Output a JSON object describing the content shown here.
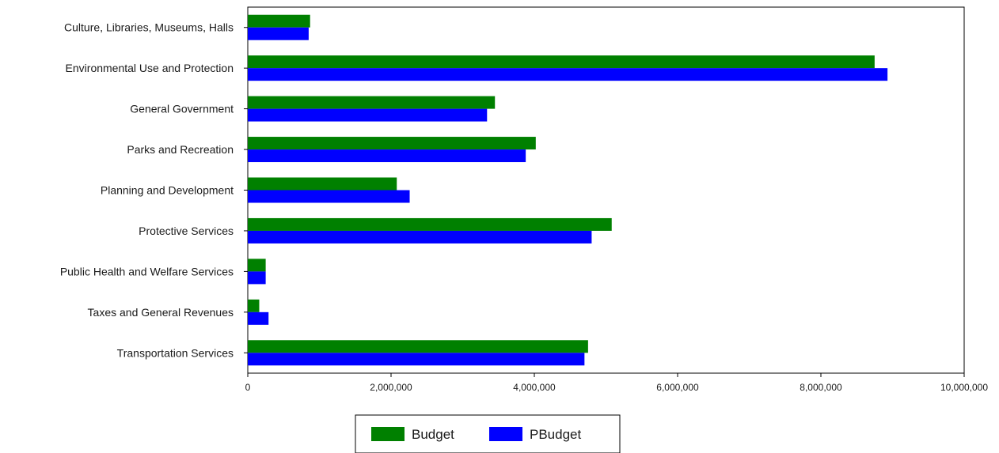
{
  "colors": {
    "budget": "#008000",
    "pbudget": "#0000FF",
    "axis": "#000000",
    "background": "#FFFFFF"
  },
  "chart_data": {
    "type": "bar",
    "orientation": "horizontal",
    "title": "",
    "xlabel": "",
    "ylabel": "",
    "categories": [
      "Culture, Libraries, Museums, Halls",
      "Environmental Use and Protection",
      "General Government",
      "Parks and Recreation",
      "Planning and Development",
      "Protective Services",
      "Public Health and Welfare Services",
      "Taxes and General Revenues",
      "Transportation Services"
    ],
    "series": [
      {
        "name": "Budget",
        "color": "#008000",
        "values": [
          870000,
          8750000,
          3450000,
          4020000,
          2080000,
          5080000,
          250000,
          160000,
          4750000
        ]
      },
      {
        "name": "PBudget",
        "color": "#0000FF",
        "values": [
          850000,
          8930000,
          3340000,
          3880000,
          2260000,
          4800000,
          250000,
          290000,
          4700000
        ]
      }
    ],
    "xlim": [
      0,
      10000000
    ],
    "xticks": [
      0,
      2000000,
      4000000,
      6000000,
      8000000,
      10000000
    ],
    "xtick_labels": [
      "0",
      "2,000,000",
      "4,000,000",
      "6,000,000",
      "8,000,000",
      "10,000,000"
    ],
    "grid": false,
    "legend": {
      "position": "bottom-center",
      "entries": [
        "Budget",
        "PBudget"
      ]
    }
  }
}
